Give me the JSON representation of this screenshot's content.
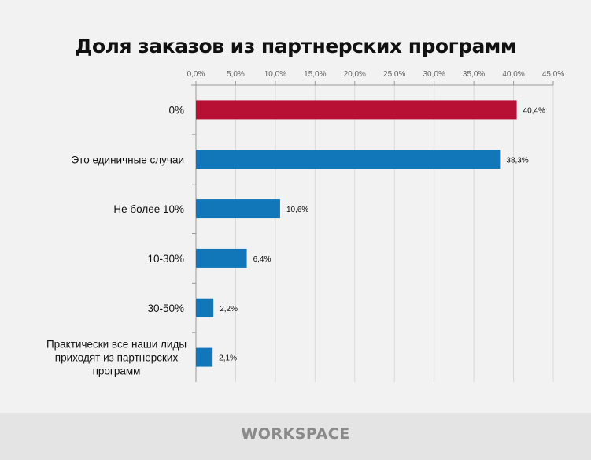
{
  "chart_data": {
    "type": "bar",
    "orientation": "horizontal",
    "title": "Доля заказов из партнерских программ",
    "categories": [
      "0%",
      "Это единичные случаи",
      "Не более 10%",
      "10-30%",
      "30-50%",
      "Практически все наши лиды приходят из партнерских программ"
    ],
    "values": [
      40.4,
      38.3,
      10.6,
      6.4,
      2.2,
      2.1
    ],
    "data_labels": [
      "40,4%",
      "38,3%",
      "10,6%",
      "6,4%",
      "2,2%",
      "2,1%"
    ],
    "bar_colors": [
      "#b80f35",
      "#1277b9",
      "#1277b9",
      "#1277b9",
      "#1277b9",
      "#1277b9"
    ],
    "xlim": [
      0,
      45
    ],
    "x_ticks": [
      "0,0%",
      "5,0%",
      "10,0%",
      "15,0%",
      "20,0%",
      "25,0%",
      "30,0%",
      "35,0%",
      "40,0%",
      "45,0%"
    ],
    "x_axis_position": "top",
    "grid": true,
    "xlabel": "",
    "ylabel": ""
  },
  "footer": {
    "logo_text": "WORKSPACE"
  }
}
